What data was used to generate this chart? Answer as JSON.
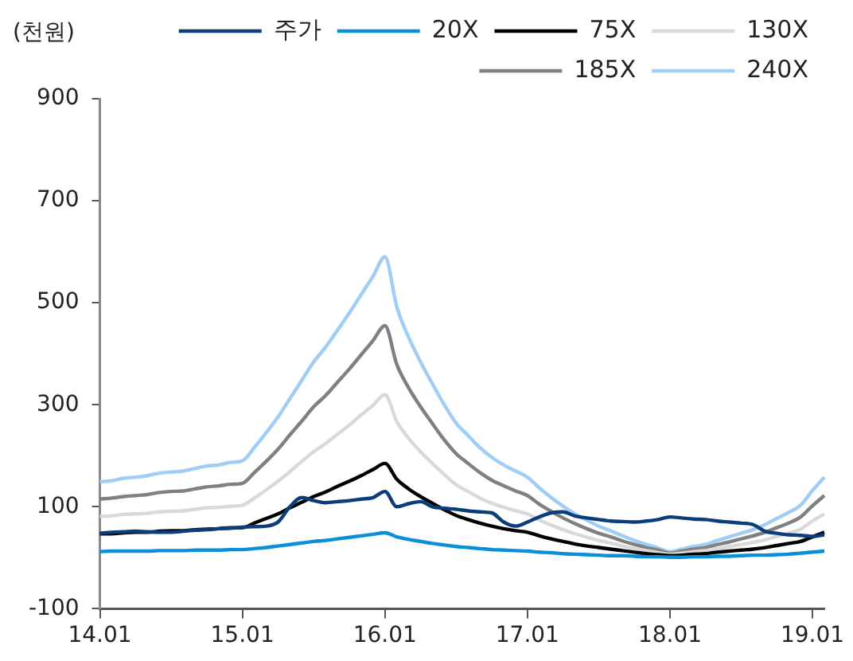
{
  "chart_data": {
    "type": "line",
    "ylabel": "(천원)",
    "legend": "top",
    "grid": false,
    "marker": "none",
    "line_style": "solid",
    "categories": [
      "14.01",
      null,
      null,
      null,
      null,
      null,
      null,
      null,
      null,
      null,
      null,
      null,
      "15.01",
      null,
      null,
      null,
      null,
      null,
      null,
      null,
      null,
      null,
      null,
      null,
      "16.01",
      null,
      null,
      null,
      null,
      null,
      null,
      null,
      null,
      null,
      null,
      null,
      "17.01",
      null,
      null,
      null,
      null,
      null,
      null,
      null,
      null,
      null,
      null,
      null,
      "18.01",
      null,
      null,
      null,
      null,
      null,
      null,
      null,
      null,
      null,
      null,
      null,
      "19.01",
      null
    ],
    "ylim": [
      -100,
      900
    ],
    "yticks": [
      -100,
      100,
      300,
      500,
      700,
      900
    ],
    "series": [
      {
        "name": "주가",
        "color": "#0a3d7a",
        "values": [
          48,
          50,
          51,
          52,
          51,
          50,
          50,
          52,
          54,
          55,
          57,
          58,
          60,
          61,
          62,
          70,
          100,
          118,
          112,
          108,
          110,
          112,
          115,
          118,
          130,
          100,
          106,
          110,
          100,
          97,
          95,
          92,
          90,
          88,
          70,
          62,
          70,
          80,
          88,
          90,
          82,
          78,
          75,
          72,
          71,
          70,
          72,
          75,
          80,
          78,
          76,
          75,
          72,
          70,
          68,
          65,
          52,
          48,
          45,
          44,
          42,
          45
        ]
      },
      {
        "name": "20X",
        "color": "#0a90d8",
        "values": [
          12,
          13,
          13,
          13,
          13,
          14,
          14,
          14,
          15,
          15,
          15,
          16,
          16,
          18,
          20,
          23,
          26,
          29,
          32,
          34,
          37,
          40,
          43,
          46,
          49,
          41,
          36,
          32,
          28,
          25,
          22,
          20,
          18,
          16,
          15,
          14,
          13,
          11,
          10,
          8,
          7,
          6,
          5,
          4,
          4,
          3,
          2,
          2,
          1,
          1,
          2,
          2,
          3,
          3,
          4,
          5,
          5,
          6,
          7,
          9,
          11,
          13
        ]
      },
      {
        "name": "75X",
        "color": "#000000",
        "values": [
          47,
          47,
          49,
          50,
          50,
          52,
          53,
          53,
          55,
          56,
          57,
          59,
          59,
          68,
          77,
          86,
          98,
          109,
          120,
          129,
          140,
          150,
          161,
          173,
          185,
          154,
          135,
          120,
          107,
          94,
          83,
          75,
          68,
          62,
          57,
          53,
          50,
          43,
          37,
          32,
          27,
          23,
          20,
          17,
          14,
          11,
          8,
          6,
          4,
          5,
          7,
          8,
          11,
          13,
          15,
          17,
          20,
          24,
          28,
          32,
          41,
          50
        ]
      },
      {
        "name": "130X",
        "color": "#d9d9d9",
        "values": [
          81,
          82,
          85,
          86,
          87,
          90,
          91,
          92,
          95,
          98,
          99,
          101,
          103,
          117,
          133,
          150,
          169,
          189,
          208,
          224,
          242,
          260,
          280,
          299,
          320,
          267,
          234,
          208,
          185,
          163,
          143,
          130,
          117,
          107,
          99,
          92,
          86,
          74,
          64,
          55,
          47,
          40,
          34,
          29,
          23,
          18,
          14,
          10,
          7,
          9,
          12,
          14,
          18,
          22,
          26,
          30,
          35,
          42,
          48,
          56,
          72,
          86
        ]
      },
      {
        "name": "185X",
        "color": "#808080",
        "values": [
          115,
          117,
          120,
          122,
          124,
          128,
          130,
          131,
          135,
          139,
          141,
          144,
          146,
          167,
          189,
          213,
          241,
          268,
          296,
          318,
          344,
          370,
          398,
          426,
          455,
          379,
          333,
          296,
          263,
          231,
          204,
          185,
          167,
          152,
          141,
          131,
          122,
          105,
          91,
          78,
          67,
          57,
          48,
          41,
          33,
          26,
          20,
          15,
          9,
          13,
          17,
          20,
          26,
          31,
          37,
          43,
          50,
          59,
          68,
          80,
          102,
          122
        ]
      },
      {
        "name": "240X",
        "color": "#9fcdf5",
        "values": [
          149,
          151,
          156,
          158,
          161,
          166,
          168,
          170,
          175,
          180,
          182,
          187,
          190,
          216,
          245,
          276,
          312,
          348,
          384,
          413,
          446,
          480,
          516,
          552,
          590,
          492,
          432,
          384,
          341,
          300,
          264,
          240,
          216,
          197,
          182,
          170,
          158,
          137,
          118,
          101,
          86,
          74,
          62,
          53,
          43,
          34,
          26,
          19,
          12,
          17,
          22,
          26,
          34,
          41,
          48,
          55,
          65,
          77,
          89,
          103,
          132,
          158
        ]
      }
    ]
  }
}
